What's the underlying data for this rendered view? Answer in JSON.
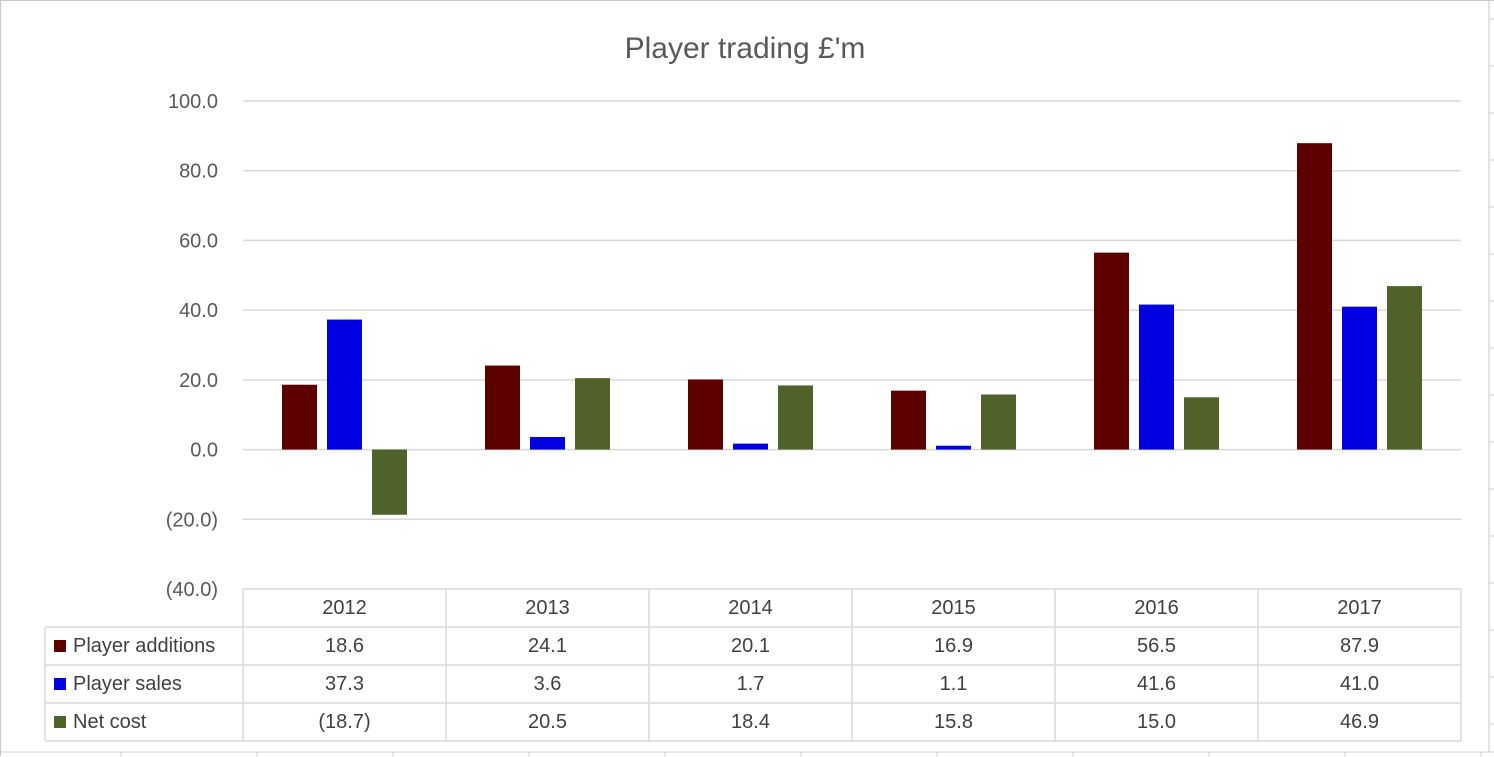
{
  "chart_data": {
    "type": "bar",
    "title": "Player trading £'m",
    "categories": [
      "2012",
      "2013",
      "2014",
      "2015",
      "2016",
      "2017"
    ],
    "series": [
      {
        "name": "Player additions",
        "color": "#5c0000",
        "values": [
          18.6,
          24.1,
          20.1,
          16.9,
          56.5,
          87.9
        ],
        "labels": [
          "18.6",
          "24.1",
          "20.1",
          "16.9",
          "56.5",
          "87.9"
        ]
      },
      {
        "name": "Player sales",
        "color": "#0000e0",
        "values": [
          37.3,
          3.6,
          1.7,
          1.1,
          41.6,
          41.0
        ],
        "labels": [
          "37.3",
          "3.6",
          "1.7",
          "1.1",
          "41.6",
          "41.0"
        ]
      },
      {
        "name": "Net cost",
        "color": "#4e6229",
        "values": [
          -18.7,
          20.5,
          18.4,
          15.8,
          15.0,
          46.9
        ],
        "labels": [
          "(18.7)",
          "20.5",
          "18.4",
          "15.8",
          "15.0",
          "46.9"
        ]
      }
    ],
    "y_ticks": [
      "100.0",
      "80.0",
      "60.0",
      "40.0",
      "20.0",
      "0.0",
      "(20.0)",
      "(40.0)"
    ],
    "y_tick_values": [
      100,
      80,
      60,
      40,
      20,
      0,
      -20,
      -40
    ],
    "ylim": [
      -40,
      100
    ],
    "grid": true,
    "legend": "data-table"
  }
}
